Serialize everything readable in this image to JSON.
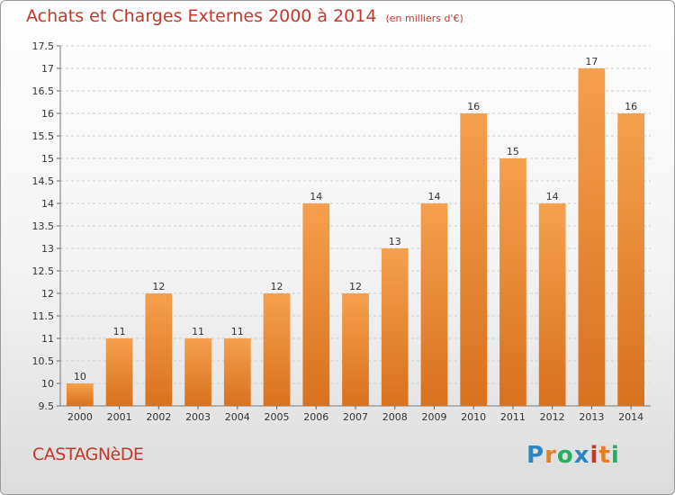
{
  "title": "Achats et Charges Externes 2000 à 2014",
  "subtitle": "(en milliers d'€)",
  "commune": "CASTAGNèDE",
  "brand": {
    "text": "Proxiti",
    "letter_colors": [
      "#2e86c1",
      "#e67e22",
      "#27ae60",
      "#2e86c1",
      "#c0392b",
      "#e67e22",
      "#27ae60"
    ]
  },
  "colors": {
    "bar_light": "#f5a04d",
    "bar_dark": "#d9711d",
    "title": "#c0392b",
    "grid": "#cccccc"
  },
  "chart_data": {
    "type": "bar",
    "categories": [
      "2000",
      "2001",
      "2002",
      "2003",
      "2004",
      "2005",
      "2006",
      "2007",
      "2008",
      "2009",
      "2010",
      "2011",
      "2012",
      "2013",
      "2014"
    ],
    "values": [
      10,
      11,
      12,
      11,
      11,
      12,
      14,
      12,
      13,
      14,
      16,
      15,
      14,
      17,
      16
    ],
    "ylim": [
      9.5,
      17.5
    ],
    "yticks": [
      9.5,
      10,
      10.5,
      11,
      11.5,
      12,
      12.5,
      13,
      13.5,
      14,
      14.5,
      15,
      15.5,
      16,
      16.5,
      17,
      17.5
    ],
    "grid": true
  }
}
